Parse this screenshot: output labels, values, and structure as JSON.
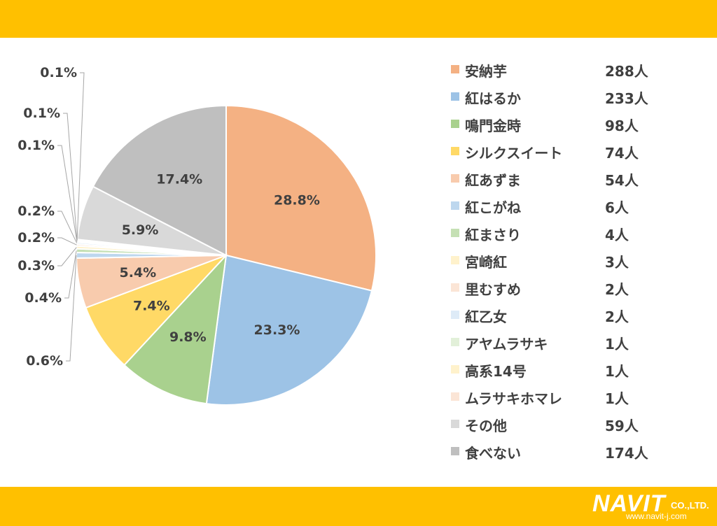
{
  "colors": {
    "band": "#FFC000",
    "text": "#404040",
    "leader": "#A6A6A6"
  },
  "brand": {
    "name": "NAVIT",
    "suffix": "CO.,LTD.",
    "url": "www.navit-j.com"
  },
  "chart_data": {
    "type": "pie",
    "start_angle_deg": 0,
    "direction": "clockwise",
    "legend_position": "right",
    "slices": [
      {
        "label": "安納芋",
        "count": "288人",
        "value": 288,
        "percent_label": "28.8%",
        "color": "#F4B183"
      },
      {
        "label": "紅はるか",
        "count": "233人",
        "value": 233,
        "percent_label": "23.3%",
        "color": "#9DC3E6"
      },
      {
        "label": "鳴門金時",
        "count": "98人",
        "value": 98,
        "percent_label": "9.8%",
        "color": "#A9D18E"
      },
      {
        "label": "シルクスイート",
        "count": "74人",
        "value": 74,
        "percent_label": "7.4%",
        "color": "#FFD966"
      },
      {
        "label": "紅あずま",
        "count": "54人",
        "value": 54,
        "percent_label": "5.4%",
        "color": "#F8CBAD"
      },
      {
        "label": "紅こがね",
        "count": "6人",
        "value": 6,
        "percent_label": "0.6%",
        "color": "#BDD7EE"
      },
      {
        "label": "紅まさり",
        "count": "4人",
        "value": 4,
        "percent_label": "0.4%",
        "color": "#C5E0B4"
      },
      {
        "label": "宮崎紅",
        "count": "3人",
        "value": 3,
        "percent_label": "0.3%",
        "color": "#FFF2CC"
      },
      {
        "label": "里むすめ",
        "count": "2人",
        "value": 2,
        "percent_label": "0.2%",
        "color": "#FBE5D6"
      },
      {
        "label": "紅乙女",
        "count": "2人",
        "value": 2,
        "percent_label": "0.2%",
        "color": "#DEEBF7"
      },
      {
        "label": "アヤムラサキ",
        "count": "1人",
        "value": 1,
        "percent_label": "0.1%",
        "color": "#E2F0D9"
      },
      {
        "label": "高系14号",
        "count": "1人",
        "value": 1,
        "percent_label": "0.1%",
        "color": "#FFF2CC"
      },
      {
        "label": "ムラサキホマレ",
        "count": "1人",
        "value": 1,
        "percent_label": "0.1%",
        "color": "#FBE5D6"
      },
      {
        "label": "その他",
        "count": "59人",
        "value": 59,
        "percent_label": "5.9%",
        "color": "#D9D9D9"
      },
      {
        "label": "食べない",
        "count": "174人",
        "value": 174,
        "percent_label": "17.4%",
        "color": "#BFBFBF"
      }
    ]
  }
}
